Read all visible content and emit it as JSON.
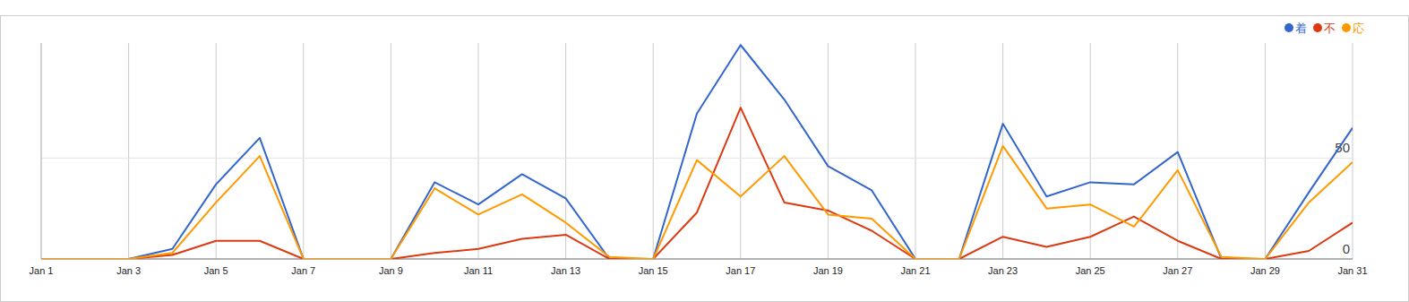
{
  "chart_data": {
    "type": "line",
    "categories": [
      "Jan 1",
      null,
      "Jan 3",
      null,
      "Jan 5",
      null,
      "Jan 7",
      null,
      "Jan 9",
      null,
      "Jan 11",
      null,
      "Jan 13",
      null,
      "Jan 15",
      null,
      "Jan 17",
      null,
      "Jan 19",
      null,
      "Jan 21",
      null,
      "Jan 23",
      null,
      "Jan 25",
      null,
      "Jan 27",
      null,
      "Jan 29",
      null,
      "Jan 31"
    ],
    "series": [
      {
        "name": "着",
        "color": "#3366cc",
        "values": [
          0,
          0,
          0,
          5,
          37,
          60,
          0,
          0,
          0,
          38,
          27,
          42,
          30,
          0,
          0,
          72,
          106,
          79,
          46,
          34,
          0,
          0,
          67,
          31,
          38,
          37,
          53,
          0,
          0,
          33,
          65
        ]
      },
      {
        "name": "不",
        "color": "#dc3912",
        "values": [
          0,
          0,
          0,
          2,
          9,
          9,
          0,
          0,
          0,
          3,
          5,
          10,
          12,
          0,
          0,
          23,
          75,
          28,
          24,
          14,
          0,
          0,
          11,
          6,
          11,
          21,
          9,
          0,
          0,
          4,
          18
        ]
      },
      {
        "name": "応",
        "color": "#ff9900",
        "values": [
          0,
          0,
          0,
          3,
          28,
          51,
          0,
          0,
          0,
          35,
          22,
          32,
          18,
          1,
          0,
          49,
          31,
          51,
          22,
          20,
          0,
          0,
          56,
          25,
          27,
          16,
          44,
          1,
          0,
          28,
          48
        ]
      }
    ],
    "ylim": [
      0,
      107
    ],
    "yticks": [
      0,
      50
    ],
    "grid": true,
    "legend": "top-right"
  }
}
